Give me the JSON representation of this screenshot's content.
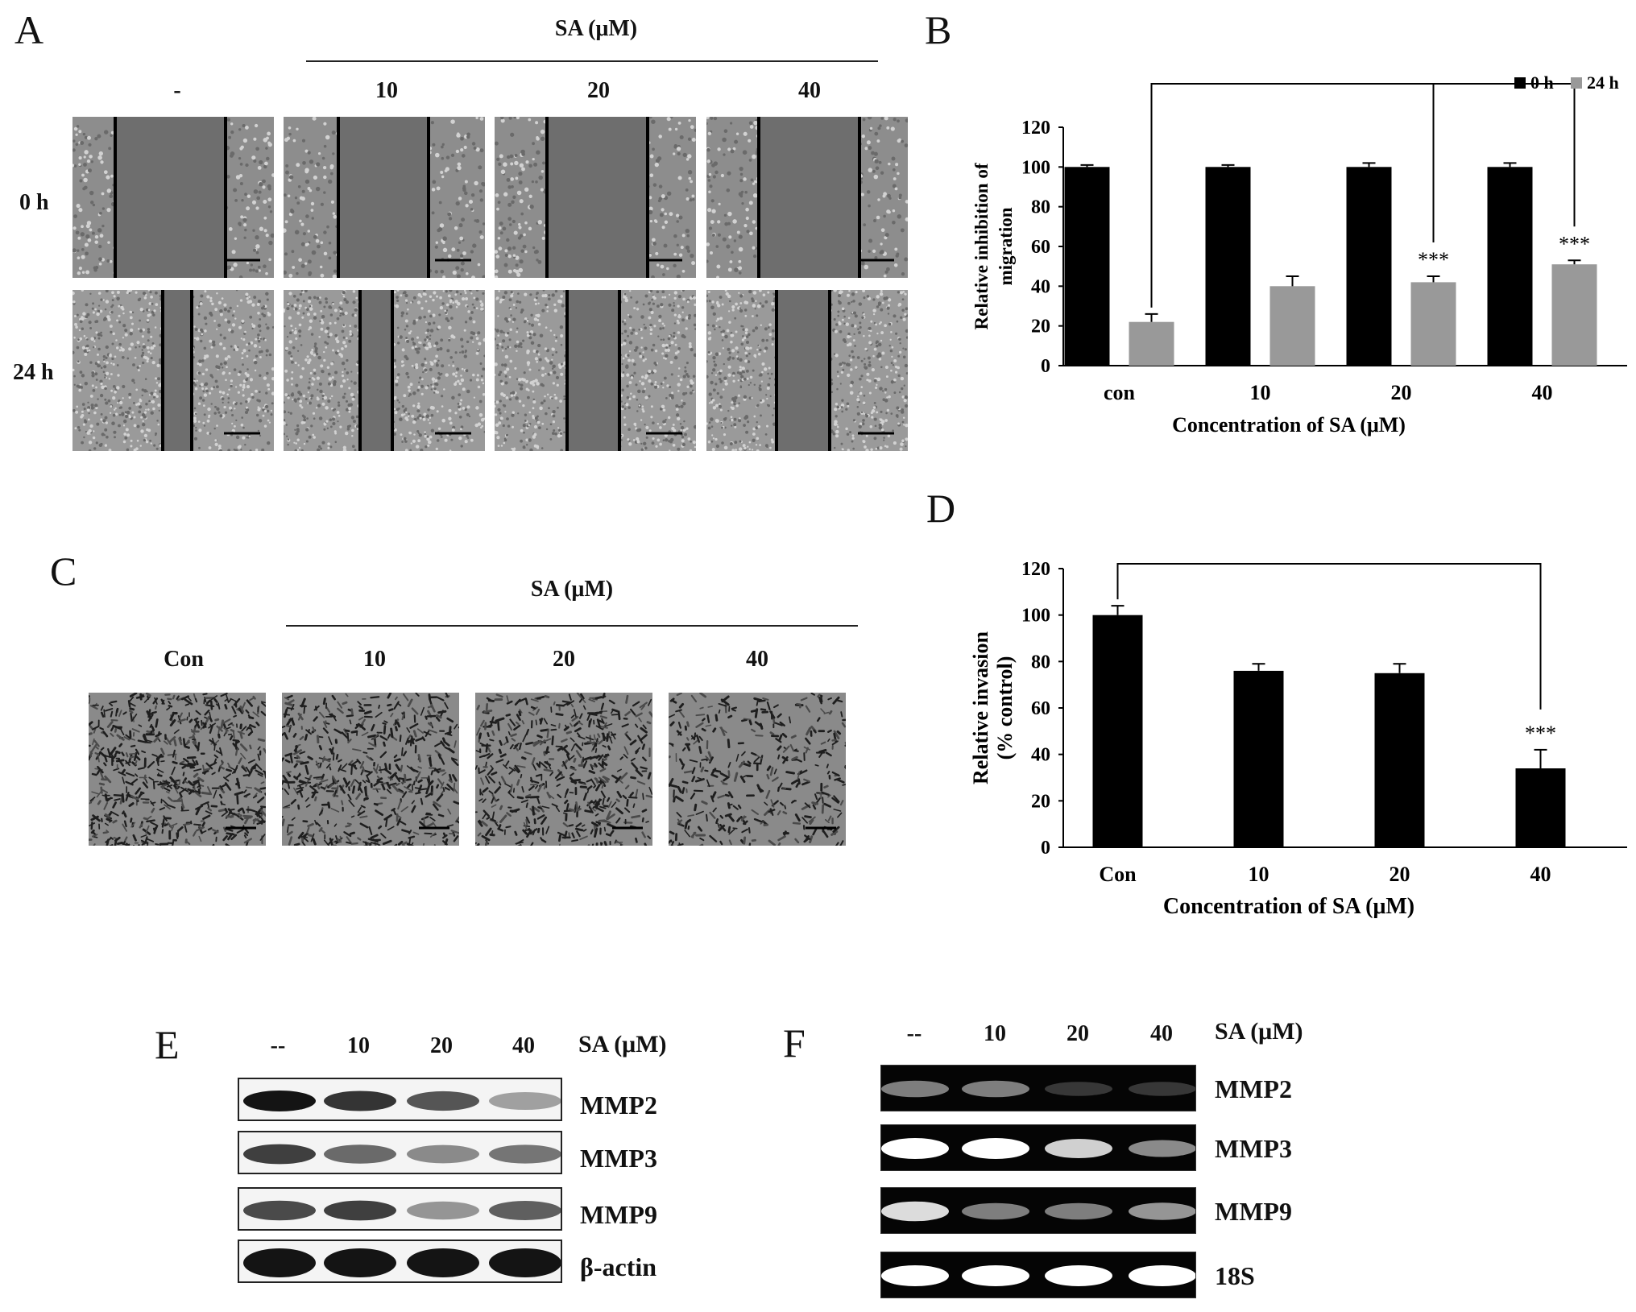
{
  "panels": {
    "A": {
      "letter": "A",
      "treatment_label": "SA (μM)",
      "columns": [
        "-",
        "10",
        "20",
        "40"
      ],
      "rows": [
        "0 h",
        "24 h"
      ]
    },
    "C": {
      "letter": "C",
      "treatment_label": "SA (μM)",
      "columns": [
        "Con",
        "10",
        "20",
        "40"
      ]
    },
    "E": {
      "letter": "E",
      "lanes": [
        "--",
        "10",
        "20",
        "40"
      ],
      "treatment_label": "SA (μM)",
      "bands": [
        "MMP2",
        "MMP3",
        "MMP9",
        "β-actin"
      ],
      "intensity": [
        [
          1.0,
          0.85,
          0.7,
          0.35
        ],
        [
          0.8,
          0.6,
          0.45,
          0.55
        ],
        [
          0.75,
          0.8,
          0.4,
          0.65
        ],
        [
          1.0,
          1.0,
          1.0,
          1.0
        ]
      ]
    },
    "F": {
      "letter": "F",
      "lanes": [
        "--",
        "10",
        "20",
        "40"
      ],
      "treatment_label": "SA (μM)",
      "bands": [
        "MMP2",
        "MMP3",
        "MMP9",
        "18S"
      ],
      "intensity": [
        [
          0.45,
          0.45,
          0.15,
          0.15
        ],
        [
          1.0,
          1.0,
          0.8,
          0.5
        ],
        [
          0.85,
          0.45,
          0.45,
          0.55
        ],
        [
          1.0,
          1.0,
          1.0,
          1.0
        ]
      ]
    }
  },
  "chart_data": [
    {
      "panel": "B",
      "letter": "B",
      "type": "bar",
      "categories": [
        "con",
        "10",
        "20",
        "40"
      ],
      "series": [
        {
          "name": "0 h",
          "values": [
            100,
            100,
            100,
            100
          ],
          "errors": [
            1,
            1,
            2,
            2
          ],
          "color": "#000000"
        },
        {
          "name": "24 h",
          "values": [
            22,
            40,
            42,
            51
          ],
          "errors": [
            4,
            5,
            3,
            2
          ],
          "color": "#999999"
        }
      ],
      "significance": [
        null,
        null,
        "***",
        "***"
      ],
      "xlabel": "Concentration  of SA (μM)",
      "ylabel": "Relative inhibition  of migration",
      "ylim": [
        0,
        120
      ],
      "yticks": [
        0,
        20,
        40,
        60,
        80,
        100,
        120
      ],
      "legend": "top-right",
      "grid": false
    },
    {
      "panel": "D",
      "letter": "D",
      "type": "bar",
      "categories": [
        "Con",
        "10",
        "20",
        "40"
      ],
      "series": [
        {
          "values": [
            100,
            76,
            75,
            34
          ],
          "errors": [
            4,
            3,
            4,
            8
          ],
          "color": "#000000"
        }
      ],
      "significance": [
        null,
        null,
        null,
        "***"
      ],
      "xlabel": "Concentration of SA (μM)",
      "ylabel": "Relative invasion (% control)",
      "ylim": [
        0,
        120
      ],
      "yticks": [
        0,
        20,
        40,
        60,
        80,
        100,
        120
      ],
      "grid": false
    }
  ]
}
